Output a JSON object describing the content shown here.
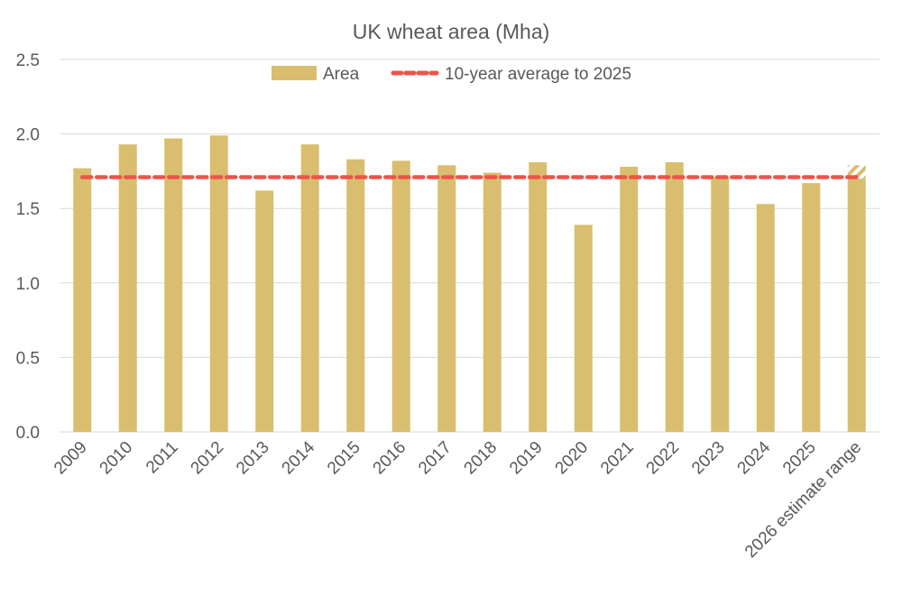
{
  "chart_data": {
    "type": "bar",
    "title": "UK wheat area (Mha)",
    "xlabel": "",
    "ylabel": "",
    "ylim": [
      0,
      2.5
    ],
    "yticks": [
      "0.0",
      "0.5",
      "1.0",
      "1.5",
      "2.0",
      "2.5"
    ],
    "grid": "horizontal",
    "legend_position": "top",
    "categories": [
      "2009",
      "2010",
      "2011",
      "2012",
      "2013",
      "2014",
      "2015",
      "2016",
      "2017",
      "2018",
      "2019",
      "2020",
      "2021",
      "2022",
      "2023",
      "2024",
      "2025",
      "2026 estimate range"
    ],
    "series": [
      {
        "name": "Area",
        "type": "bar",
        "color": "#D8BE6E",
        "values": [
          1.77,
          1.93,
          1.97,
          1.99,
          1.62,
          1.93,
          1.83,
          1.82,
          1.79,
          1.74,
          1.81,
          1.39,
          1.78,
          1.81,
          1.71,
          1.53,
          1.67,
          1.7
        ]
      },
      {
        "name": "10-year average to 2025",
        "type": "line",
        "style": "dashed",
        "color": "#F0524A",
        "values": [
          1.71,
          1.71,
          1.71,
          1.71,
          1.71,
          1.71,
          1.71,
          1.71,
          1.71,
          1.71,
          1.71,
          1.71,
          1.71,
          1.71,
          1.71,
          1.71,
          1.71,
          1.71
        ]
      }
    ],
    "estimate_range": {
      "category": "2026 estimate range",
      "low": 1.7,
      "high": 1.79,
      "style": "hatched"
    }
  }
}
